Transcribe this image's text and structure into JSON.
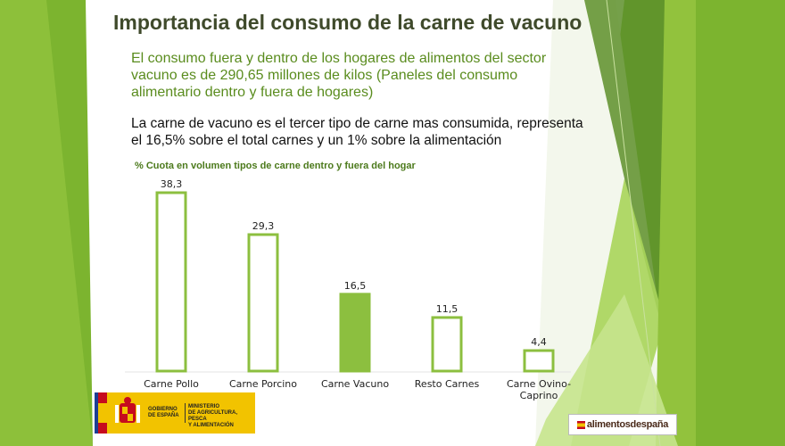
{
  "slide": {
    "title": "Importancia del consumo de la carne de vacuno",
    "paragraph1": "El consumo fuera y dentro de los hogares de alimentos del sector vacuno es de 290,65 millones de kilos (Paneles del consumo alimentario dentro y fuera de hogares)",
    "paragraph2": "La carne de vacuno es el tercer tipo de carne mas consumida, representa el 16,5% sobre el total carnes y un 1% sobre la alimentación"
  },
  "chart_data": {
    "type": "bar",
    "title": "% Cuota en volumen tipos de carne dentro y fuera del hogar",
    "categories": [
      "Carne Pollo",
      "Carne Porcino",
      "Carne Vacuno",
      "Resto Carnes",
      "Carne Ovino-Caprino"
    ],
    "values": [
      38.3,
      29.3,
      16.5,
      11.5,
      4.4
    ],
    "value_labels": [
      "38,3",
      "29,3",
      "16,5",
      "11,5",
      "4,4"
    ],
    "highlight_index": 2,
    "ylim": [
      0,
      38.3
    ],
    "grid": false,
    "colors": {
      "bar_stroke": "#8cbf3f",
      "highlight_fill": "#8cbf3f",
      "bar_fill": "#ffffff"
    }
  },
  "footer": {
    "gov_line1": "GOBIERNO",
    "gov_line2": "DE ESPAÑA",
    "ministry_line1": "MINISTERIO",
    "ministry_line2": "DE AGRICULTURA, PESCA",
    "ministry_line3": "Y ALIMENTACIÓN",
    "brand": "alimentosdespaña"
  },
  "icons": {
    "coat_of_arms": "coat-of-arms-icon",
    "flag": "spain-flag-icon"
  }
}
